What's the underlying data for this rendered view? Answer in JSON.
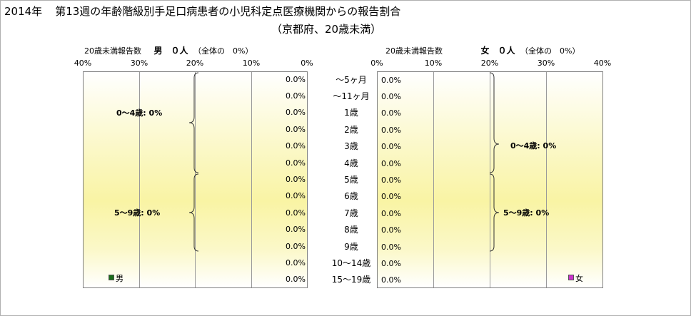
{
  "title": {
    "year": "2014年",
    "main": "第13週の年齢階級別手足口病患者の小児科定点医療機関からの報告割合",
    "sub": "（京都府、20歳未満）"
  },
  "chart_data": {
    "type": "bar",
    "orientation": "horizontal",
    "categories": [
      "～5ヶ月",
      "～11ヶ月",
      "1歳",
      "2歳",
      "3歳",
      "4歳",
      "5歳",
      "6歳",
      "7歳",
      "8歳",
      "9歳",
      "10～14歳",
      "15～19歳"
    ],
    "xlim": [
      0,
      40
    ],
    "xticks": [
      "0%",
      "10%",
      "20%",
      "30%",
      "40%"
    ],
    "value_label_format": "0.0%",
    "series": [
      {
        "name": "男",
        "header_label": "20歳未満報告数",
        "header_count": "男　０人",
        "header_share": "（全体の　0%）",
        "values": [
          0,
          0,
          0,
          0,
          0,
          0,
          0,
          0,
          0,
          0,
          0,
          0,
          0
        ],
        "value_labels": [
          "0.0%",
          "0.0%",
          "0.0%",
          "0.0%",
          "0.0%",
          "0.0%",
          "0.0%",
          "0.0%",
          "0.0%",
          "0.0%",
          "0.0%",
          "0.0%",
          "0.0%"
        ],
        "color": "#1a6e1a",
        "groups": [
          {
            "label": "0～4歳: 0%",
            "from": 0,
            "to": 5
          },
          {
            "label": "5～9歳: 0%",
            "from": 6,
            "to": 10
          }
        ]
      },
      {
        "name": "女",
        "header_label": "20歳未満報告数",
        "header_count": "女　０人",
        "header_share": "（全体の　0%）",
        "values": [
          0,
          0,
          0,
          0,
          0,
          0,
          0,
          0,
          0,
          0,
          0,
          0,
          0
        ],
        "value_labels": [
          "0.0%",
          "0.0%",
          "0.0%",
          "0.0%",
          "0.0%",
          "0.0%",
          "0.0%",
          "0.0%",
          "0.0%",
          "0.0%",
          "0.0%",
          "0.0%",
          "0.0%"
        ],
        "color": "#cc33cc",
        "groups": [
          {
            "label": "0～4歳: 0%",
            "from": 0,
            "to": 5
          },
          {
            "label": "5～9歳: 0%",
            "from": 6,
            "to": 10
          }
        ]
      }
    ]
  }
}
